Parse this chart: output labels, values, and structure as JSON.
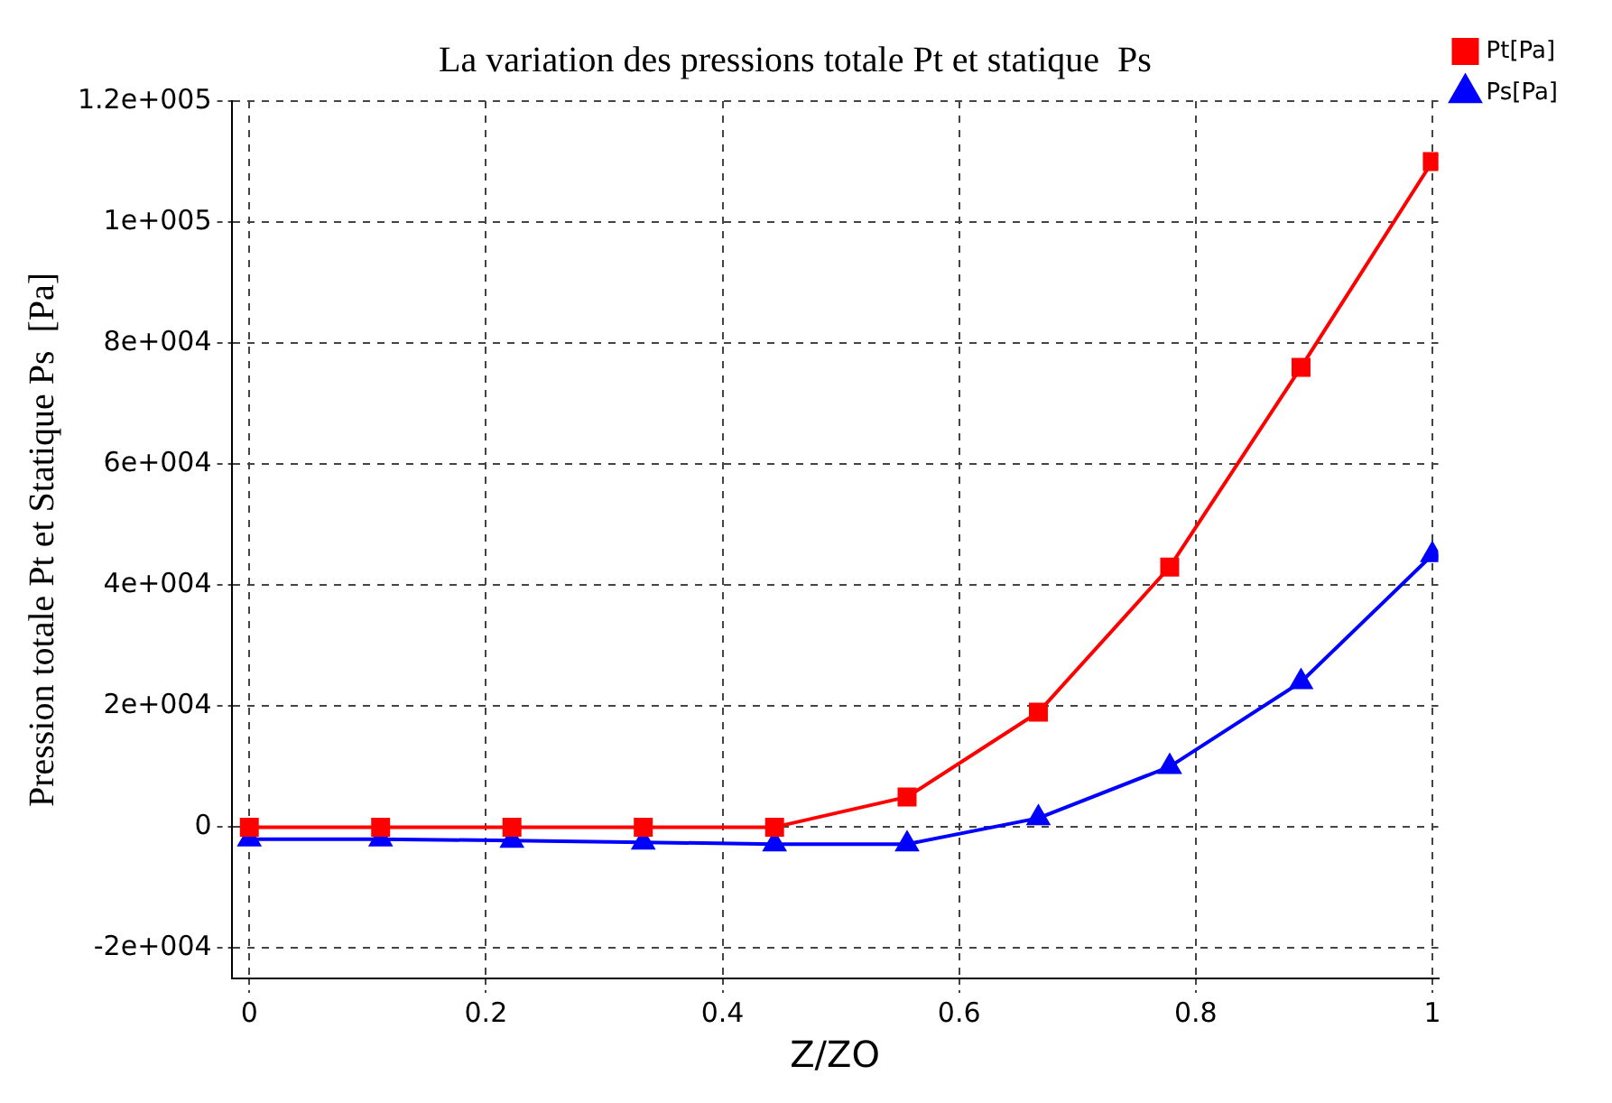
{
  "chart_data": {
    "type": "line",
    "title": "La variation des pressions totale Pt et statique  Ps",
    "xlabel": "Z/ZO",
    "ylabel": "Pression totale Pt et Statique Ps  [Pa]",
    "x": [
      0,
      0.111,
      0.222,
      0.333,
      0.444,
      0.556,
      0.667,
      0.778,
      0.889,
      1
    ],
    "series": [
      {
        "name": "Pt[Pa]",
        "color": "#ff0000",
        "marker": "square",
        "values": [
          0,
          0,
          0,
          0,
          0,
          5000,
          19000,
          43000,
          76000,
          110000
        ]
      },
      {
        "name": "Ps[Pa]",
        "color": "#0000ff",
        "marker": "triangle",
        "values": [
          -2000,
          -2000,
          -2200,
          -2500,
          -2800,
          -2800,
          1500,
          10000,
          24000,
          45000
        ]
      }
    ],
    "xlim": [
      -0.015,
      1.005
    ],
    "xticks": [
      0,
      0.2,
      0.4,
      0.6,
      0.8,
      1
    ],
    "ylim": [
      -25000,
      120000
    ],
    "yticks": [
      {
        "value": -20000,
        "label": "-2e+004"
      },
      {
        "value": 0,
        "label": "0"
      },
      {
        "value": 20000,
        "label": "2e+004"
      },
      {
        "value": 40000,
        "label": "4e+004"
      },
      {
        "value": 60000,
        "label": "6e+004"
      },
      {
        "value": 80000,
        "label": "8e+004"
      },
      {
        "value": 100000,
        "label": "1e+005"
      },
      {
        "value": 120000,
        "label": "1.2e+005"
      }
    ],
    "grid": true,
    "legend": "top right",
    "line_style": "solid"
  }
}
